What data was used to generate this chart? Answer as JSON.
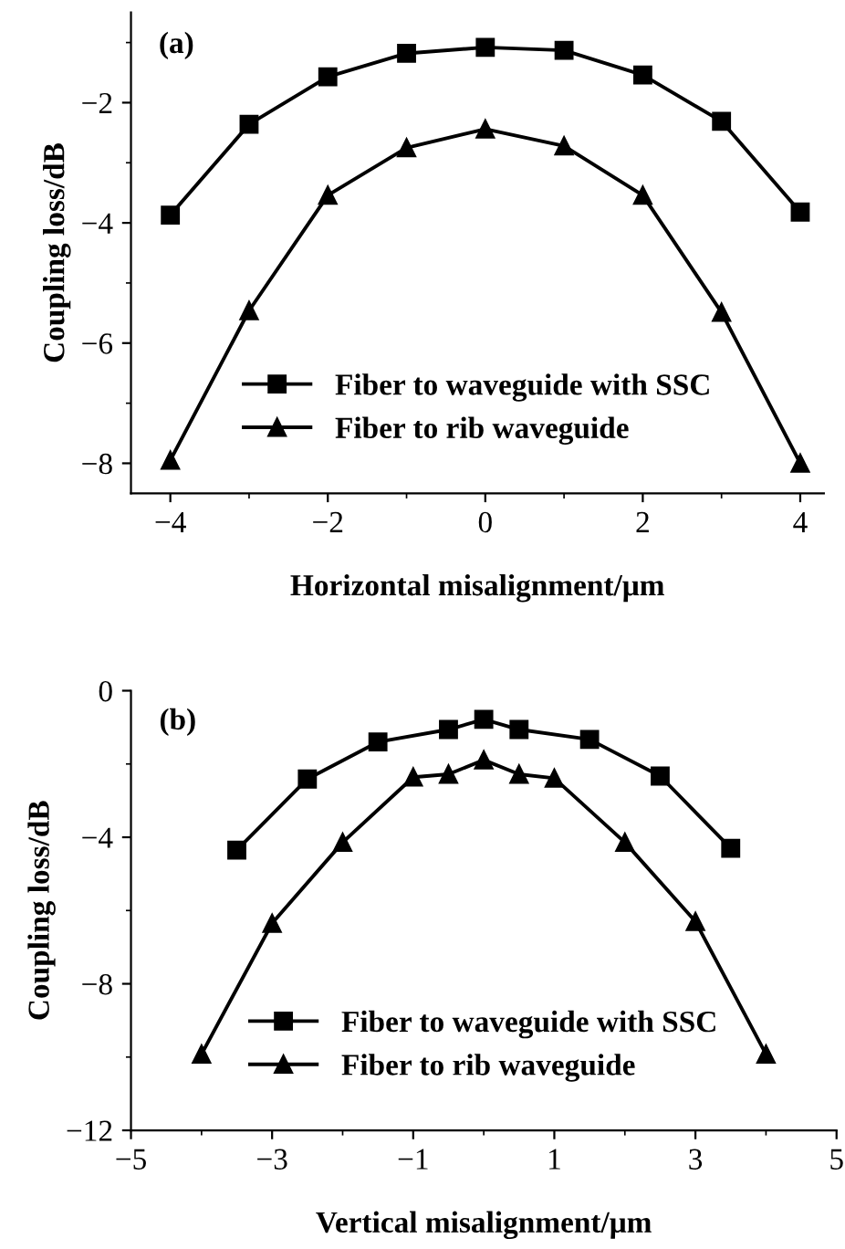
{
  "chart_data": [
    {
      "type": "line",
      "xlabel": "Horizontal misalignment/μm",
      "ylabel": "Coupling loss/dB",
      "annotations": [
        "(a)"
      ],
      "x": [
        -4,
        -3,
        -2,
        -1,
        0,
        1,
        2,
        3,
        4
      ],
      "series": [
        {
          "name": "Fiber to waveguide with SSC",
          "color": "#000000",
          "marker": "square",
          "values": [
            -3.87,
            -2.36,
            -1.57,
            -1.18,
            -1.08,
            -1.13,
            -1.54,
            -2.31,
            -3.82
          ]
        },
        {
          "name": "Fiber to rib waveguide",
          "color": "#000000",
          "marker": "triangle",
          "values": [
            -7.95,
            -5.46,
            -3.54,
            -2.75,
            -2.44,
            -2.72,
            -3.54,
            -5.49,
            -8.0
          ]
        }
      ],
      "xlim": [
        -4.5,
        4.3
      ],
      "ylim": [
        -8.5,
        -0.5
      ],
      "xticks": [
        {
          "value": -4,
          "label": "−4"
        },
        {
          "value": -2,
          "label": "−2"
        },
        0,
        2,
        4
      ],
      "yticks": [
        {
          "value": -8,
          "label": "−8"
        },
        {
          "value": -6,
          "label": "−6"
        },
        {
          "value": -4,
          "label": "−4"
        },
        {
          "value": -2,
          "label": "−2"
        }
      ],
      "grid": false,
      "legend": "bottom",
      "line_style": "solid"
    },
    {
      "type": "line",
      "xlabel": "Vertical misalignment/μm",
      "ylabel": "Coupling loss/dB",
      "annotations": [
        "(b)"
      ],
      "series": [
        {
          "name": "Fiber to waveguide with SSC",
          "color": "#000000",
          "marker": "square",
          "x": [
            -3.5,
            -2.5,
            -1.5,
            -0.5,
            0,
            0.5,
            1.5,
            2.5,
            3.5
          ],
          "values": [
            -4.35,
            -2.41,
            -1.4,
            -1.06,
            -0.78,
            -1.06,
            -1.33,
            -2.33,
            -4.3
          ]
        },
        {
          "name": "Fiber to rib waveguide",
          "color": "#000000",
          "marker": "triangle",
          "x": [
            -4,
            -3,
            -2,
            -1,
            -0.5,
            0,
            0.5,
            1,
            2,
            3,
            4
          ],
          "values": [
            -9.92,
            -6.35,
            -4.14,
            -2.36,
            -2.28,
            -1.89,
            -2.28,
            -2.39,
            -4.14,
            -6.3,
            -9.92
          ]
        }
      ],
      "xlim": [
        -5,
        5
      ],
      "ylim": [
        -12,
        0
      ],
      "xticks": [
        {
          "value": -5,
          "label": "−5"
        },
        {
          "value": -3,
          "label": "−3"
        },
        {
          "value": -1,
          "label": "−1"
        },
        1,
        3,
        5
      ],
      "yticks": [
        {
          "value": -12,
          "label": "−12"
        },
        {
          "value": -8,
          "label": "−8"
        },
        {
          "value": -4,
          "label": "−4"
        },
        0
      ],
      "grid": false,
      "legend": "bottom",
      "line_style": "solid"
    }
  ]
}
